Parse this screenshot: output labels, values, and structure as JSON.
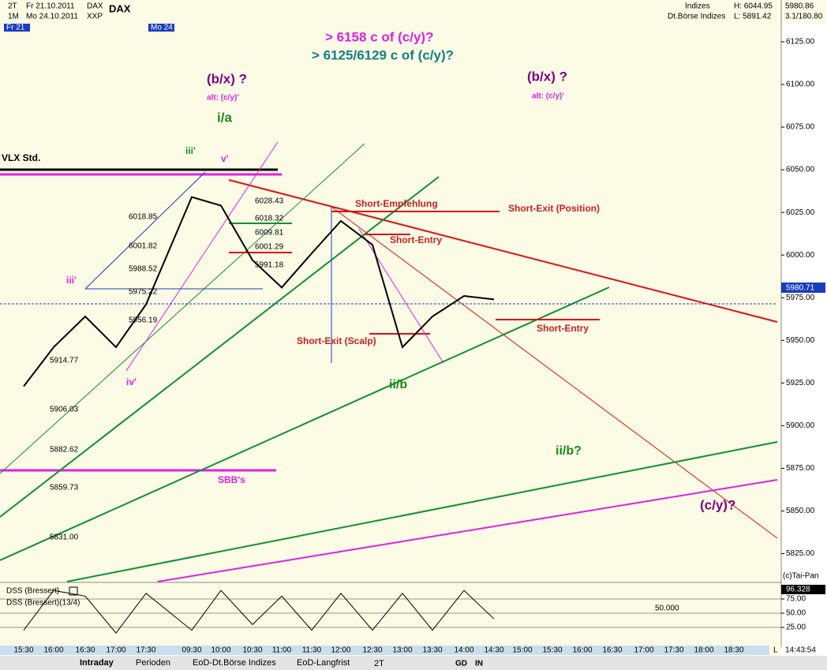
{
  "header": {
    "left": [
      "2T",
      "Fr 21.10.2011",
      "DAX",
      "1M",
      "Mo 24.10.2011",
      "XXP"
    ],
    "symbol": "DAX",
    "right": [
      "Indizes",
      "H: 6044.95",
      "5980.86",
      "Dt.Börse Indizes",
      "L: 5891.42",
      "3.1/180.80"
    ],
    "day_tags": [
      "Fr 21",
      "Mo 24"
    ]
  },
  "chart_data": [
    {
      "type": "line",
      "categories": [
        "15:30",
        "16:00",
        "16:30",
        "17:00",
        "17:30",
        "09:30",
        "10:00",
        "10:30",
        "11:00",
        "11:30",
        "12:00",
        "12:30",
        "13:00",
        "13:30",
        "14:00",
        "14:30",
        "15:00",
        "15:30",
        "16:00",
        "16:30",
        "17:00",
        "17:30",
        "18:00",
        "18:30"
      ],
      "series": [
        {
          "name": "DAX",
          "color": "#000000",
          "values": [
            5923,
            5946,
            5964,
            5946,
            5971,
            6034,
            6029,
            5997,
            5981,
            6001,
            6020,
            6006,
            5946,
            5964,
            5976,
            5974,
            null,
            null,
            null,
            null,
            null,
            null,
            null,
            null
          ]
        }
      ],
      "ylim": [
        5809.5,
        6149.5
      ],
      "yticks": [
        {
          "value": 6125,
          "label": "6125.00"
        },
        {
          "value": 6100,
          "label": "6100.00"
        },
        {
          "value": 6075,
          "label": "6075.00"
        },
        {
          "value": 6050,
          "label": "6050.00"
        },
        {
          "value": 6025,
          "label": "6025.00"
        },
        {
          "value": 6000,
          "label": "6000.00"
        },
        {
          "value": 5975,
          "label": "5975.00"
        },
        {
          "value": 5950,
          "label": "5950.00"
        },
        {
          "value": 5925,
          "label": "5925.00"
        },
        {
          "value": 5900,
          "label": "5900.00"
        },
        {
          "value": 5875,
          "label": "5875.00"
        },
        {
          "value": 5850,
          "label": "5850.00"
        },
        {
          "value": 5825,
          "label": "5825.00"
        }
      ],
      "last_price": "5980.71",
      "annotations": [
        "> 6158 c of (c/y)?",
        "> 6125/6129 c of (c/y)?",
        "(b/x) ?",
        "alt: (c/y)'",
        "(b/x) ?",
        "alt: (c/y)'",
        "i/a",
        "iii'",
        "v'",
        "VLX Std.",
        "Short-Empfehlung",
        "Short-Exit (Position)",
        "Short-Entry",
        "Short-Exit (Scalp)",
        "Short-Entry",
        "ii/b",
        "ii/b?",
        "(c/y)?",
        "iii'",
        "iv'",
        "SBB's"
      ],
      "levels": [
        "6028.43",
        "6018.32",
        "6009.81",
        "6001.29",
        "5991.18",
        "6018.85",
        "6001.82",
        "5988.52",
        "5975.22",
        "5956.19",
        "5914.77",
        "5906.03",
        "5882.62",
        "5859.73",
        "5831.00"
      ],
      "copyright": "(c)Tai-Pan"
    },
    {
      "type": "line",
      "title": "DSS (Bressert)",
      "subtitle": "DSS (Bressert)(13/4)",
      "series": [
        {
          "name": "DSS",
          "color": "#000000",
          "values": [
            20,
            90,
            80,
            15,
            85,
            20,
            90,
            30,
            80,
            20,
            85,
            20,
            85,
            20,
            90,
            40,
            null,
            null,
            null,
            null,
            null,
            null,
            null,
            null
          ]
        }
      ],
      "ylim": [
        -2.8,
        101.4
      ],
      "yticks": [
        {
          "value": 75,
          "label": "75.00"
        },
        {
          "value": 50,
          "label": "50.00"
        },
        {
          "value": 25,
          "label": "25.00"
        }
      ],
      "level_label": "50.000",
      "last_value": "96.328"
    }
  ],
  "footer": {
    "tabs": [
      "Intraday",
      "Perioden",
      "EoD-Dt.Börse Indizes",
      "EoD-Langfrist"
    ],
    "period": "2T",
    "buttons": [
      "GD",
      "IN"
    ],
    "axis_end": "L",
    "clock": "14:43:54"
  }
}
